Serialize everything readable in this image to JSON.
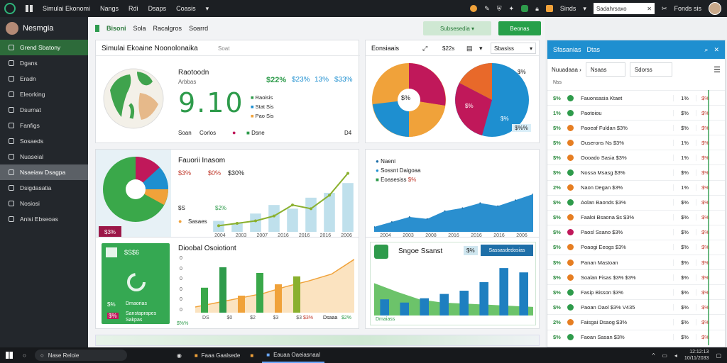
{
  "topbar": {
    "app_title": "Simulai Ekonomi",
    "menus": [
      "Nangs",
      "Rdi",
      "Dsaps",
      "Coasis"
    ],
    "search_placeholder": "Sadahrsaxo",
    "status": "Fonds sis",
    "notif_label": "Sinds"
  },
  "sidebar": {
    "user": "Nesmgia",
    "items": [
      {
        "label": "Grend Sbatony",
        "state": "green"
      },
      {
        "label": "Dgans",
        "state": ""
      },
      {
        "label": "Eradn",
        "state": ""
      },
      {
        "label": "Eleorking",
        "state": ""
      },
      {
        "label": "Dsurnat",
        "state": ""
      },
      {
        "label": "Fanfigs",
        "state": ""
      },
      {
        "label": "Sosaeds",
        "state": ""
      },
      {
        "label": "Nuaseial",
        "state": ""
      },
      {
        "label": "Nsaeiaw Dsagpa",
        "state": "sel"
      },
      {
        "label": "Dsigdasatia",
        "state": ""
      },
      {
        "label": "Nosiosi",
        "state": ""
      },
      {
        "label": "Anisi Ebseoas",
        "state": ""
      }
    ]
  },
  "subbar": {
    "title": "Bisoni",
    "tabs": [
      "Sola",
      "Racalgros",
      "Soarrd"
    ],
    "action_light": "Subsesedia",
    "action_green": "Beonas"
  },
  "cards": {
    "overview": {
      "title": "Simulai Ekoaine Noonolonaika",
      "subtitle": "Soat",
      "map_heading": "Raotoodn",
      "map_sub": "Arbbas",
      "kpis": [
        "$22%",
        "$23%",
        "13%",
        "$33%"
      ],
      "big_num": "9.10",
      "legend": [
        "Raoisis",
        "Stat Sis",
        "Pao Sis"
      ],
      "foot": [
        "Soan",
        "Corlos"
      ],
      "foot_right": "Dsne",
      "foot_end": "D4"
    },
    "pies_top": {
      "title": "Eonsiaais",
      "filter": "$22s",
      "dropdown": "Sbasiss",
      "center_label": "$%",
      "slice_a": "$%",
      "slice_b": "$%",
      "slice_c": "$%",
      "tag": "$%%"
    },
    "donut": {
      "title": "Fauorii Inasom",
      "stat1": "$3%",
      "stat2": "$0%",
      "stat3": "$30%",
      "row_label": "$S",
      "row_val": "$2%",
      "foot": "Sasaes",
      "badge": "$3%",
      "xticks": [
        "2004",
        "2003",
        "2007",
        "2016",
        "2016",
        "2016",
        "2006"
      ],
      "bars": [
        18,
        14,
        30,
        44,
        38,
        56,
        64,
        80
      ],
      "line": [
        10,
        14,
        18,
        26,
        44,
        38,
        60,
        96
      ]
    },
    "area": {
      "legend": [
        "Naeni",
        "Sossnt Daigoaa",
        "Eoasesiss"
      ],
      "legend_val": "$%",
      "xticks": [
        "2004",
        "2003",
        "2008",
        "2016",
        "2016",
        "2016",
        "2006"
      ],
      "values": [
        10,
        20,
        30,
        26,
        42,
        48,
        58,
        52,
        64,
        76
      ]
    },
    "green_card": {
      "num": "$S$6",
      "stat1": "$%",
      "lbl1": "Dmaorias",
      "stat2": "$%",
      "lbl2": "Sanstaprapes",
      "lbl3": "Sakpas",
      "cta": "$%%"
    },
    "diag": {
      "title": "Dioobal Osoiotiont",
      "yticks": [
        "0",
        "0",
        "0",
        "0",
        "0",
        "0"
      ],
      "xticks": [
        "DS",
        "$0",
        "$2",
        "$3",
        "$3"
      ],
      "tag": "$3%",
      "foot": "Dsaaa",
      "foot_badge": "$2%",
      "bars": [
        44,
        80,
        30,
        70,
        50,
        64
      ],
      "line": [
        10,
        18,
        26,
        34,
        46,
        56,
        68,
        94
      ]
    },
    "sugar": {
      "title": "Sngoe Ssanst",
      "btn": "Sassasdedosias",
      "tag": "$%",
      "foot": "Dmaiass",
      "bars": [
        30,
        24,
        32,
        40,
        46,
        62,
        88,
        80
      ],
      "area": [
        60,
        44,
        30,
        24,
        22,
        20,
        18,
        16
      ]
    }
  },
  "rpanel": {
    "title": "Sfasanias",
    "tab": "Dtas",
    "filter1": "Nuuadaaa",
    "filter2": "Nsaas",
    "filter3": "Sdorss",
    "header_hint": "Nss",
    "rows": [
      {
        "c1": "$%",
        "name": "Fauonsasia Ktaet",
        "c2": "1%",
        "c3": "$%",
        "dot": "#2e9b4b"
      },
      {
        "c1": "1%",
        "name": "Paotoiou",
        "c2": "$%",
        "c3": "$%",
        "dot": "#2e9b4b"
      },
      {
        "c1": "$%",
        "name": "Paoeaf Fuldan $3%",
        "c2": "$%",
        "c3": "$%",
        "dot": "#e67e22"
      },
      {
        "c1": "$%",
        "name": "Ouserons Ns $3%",
        "c2": "1%",
        "c3": "$%",
        "dot": "#e67e22"
      },
      {
        "c1": "$%",
        "name": "Oooado Sasia $3%",
        "c2": "1%",
        "c3": "$%",
        "dot": "#e67e22"
      },
      {
        "c1": "$%",
        "name": "Nossa Msasg $3%",
        "c2": "$%",
        "c3": "$%",
        "dot": "#2e9b4b"
      },
      {
        "c1": "2%",
        "name": "Naon Degan $3%",
        "c2": "1%",
        "c3": "$%",
        "dot": "#e67e22"
      },
      {
        "c1": "$%",
        "name": "Aolan Baonds $3%",
        "c2": "$%",
        "c3": "$%",
        "dot": "#2e9b4b"
      },
      {
        "c1": "$%",
        "name": "Faaloi Bsaona $s $3%",
        "c2": "$%",
        "c3": "$%",
        "dot": "#e67e22"
      },
      {
        "c1": "$%",
        "name": "Paosl Ssano $3%",
        "c2": "$%",
        "c3": "$%",
        "dot": "#c0185a"
      },
      {
        "c1": "$%",
        "name": "Poaogi Eeogs $3%",
        "c2": "$%",
        "c3": "$%",
        "dot": "#e67e22"
      },
      {
        "c1": "$%",
        "name": "Panan Mastoan",
        "c2": "$%",
        "c3": "$%",
        "dot": "#e67e22"
      },
      {
        "c1": "$%",
        "name": "Soalan Fisas $3% $3%",
        "c2": "$%",
        "c3": "$%",
        "dot": "#e67e22"
      },
      {
        "c1": "$%",
        "name": "Fasip Bisson $3%",
        "c2": "$%",
        "c3": "$%",
        "dot": "#2e9b4b"
      },
      {
        "c1": "$%",
        "name": "Paoan Oaol $3% V435",
        "c2": "$%",
        "c3": "$%",
        "dot": "#2e9b4b"
      },
      {
        "c1": "2%",
        "name": "Faisgai Dsaog $3%",
        "c2": "$%",
        "c3": "$%",
        "dot": "#e67e22"
      },
      {
        "c1": "$%",
        "name": "Faoan Sasan $3%",
        "c2": "$%",
        "c3": "$%",
        "dot": "#2e9b4b"
      }
    ]
  },
  "taskbar": {
    "search": "Nase Reloie",
    "app1": "Faaa Gaalsede",
    "app2": "Eauaa Oaeiasnaal",
    "time": "12:12:13",
    "date": "10/11/2033"
  },
  "colors": {
    "green": "#2e9b4b",
    "blue": "#1e8fd0",
    "orange": "#f0a23a",
    "magenta": "#c0185a"
  }
}
